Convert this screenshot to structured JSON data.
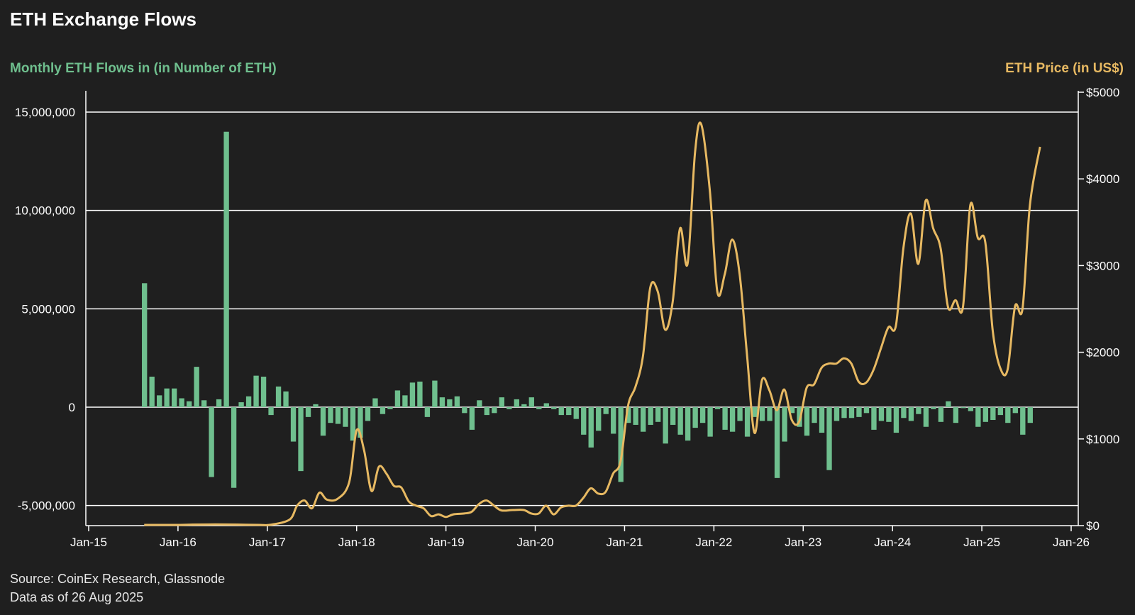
{
  "title": "ETH Exchange Flows",
  "left_axis_label": "Monthly ETH Flows in (in Number of ETH)",
  "right_axis_label": "ETH Price (in US$)",
  "source": "Source: CoinEx Research, Glassnode",
  "data_as_of": "Data as of 26 Aug 2025",
  "colors": {
    "background": "#1f1f1f",
    "bars": "#6fbf8e",
    "price_line": "#e7b962",
    "gridline": "#ffffff",
    "text": "#ffffff"
  },
  "chart_data": {
    "type": "bar+line",
    "title": "ETH Exchange Flows",
    "x_tick_labels": [
      "Jan-15",
      "Jan-16",
      "Jan-17",
      "Jan-18",
      "Jan-19",
      "Jan-20",
      "Jan-21",
      "Jan-22",
      "Jan-23",
      "Jan-24",
      "Jan-25",
      "Jan-26"
    ],
    "y_left": {
      "label": "Monthly ETH Flows in (in Number of ETH)",
      "ticks": [
        15000000,
        10000000,
        5000000,
        0,
        -5000000
      ],
      "tick_labels": [
        "15,000,000",
        "10,000,000",
        "5,000,000",
        "0",
        "-5,000,000"
      ],
      "range": [
        -6000000,
        16000000
      ]
    },
    "y_right": {
      "label": "ETH Price (in US$)",
      "ticks": [
        5000,
        4000,
        3000,
        2000,
        1000,
        0
      ],
      "tick_labels": [
        "$5000",
        "$4000",
        "$3000",
        "$2000",
        "$1000",
        "$0"
      ],
      "range": [
        0,
        5000
      ]
    },
    "gridlines": true,
    "series": [
      {
        "name": "Monthly ETH Flows in (in Number of ETH)",
        "kind": "bar",
        "axis": "left",
        "x_start": "2015-08",
        "frequency": "monthly",
        "values": [
          6300000,
          1550000,
          600000,
          950000,
          950000,
          450000,
          300000,
          2050000,
          350000,
          -3550000,
          400000,
          14000000,
          -4100000,
          250000,
          550000,
          1600000,
          1550000,
          -400000,
          1050000,
          800000,
          -1750000,
          -3250000,
          -500000,
          150000,
          -1450000,
          -800000,
          -850000,
          -1000000,
          -1700000,
          -1550000,
          -700000,
          450000,
          -350000,
          -100000,
          850000,
          600000,
          1250000,
          1300000,
          -500000,
          1350000,
          500000,
          400000,
          550000,
          -300000,
          -1150000,
          350000,
          -400000,
          -300000,
          500000,
          -100000,
          400000,
          150000,
          500000,
          -100000,
          200000,
          -100000,
          -400000,
          -400000,
          -600000,
          -1400000,
          -2050000,
          -1200000,
          -350000,
          -1350000,
          -3800000,
          -800000,
          -900000,
          -1250000,
          -900000,
          -750000,
          -1850000,
          -900000,
          -1400000,
          -1700000,
          -1050000,
          -800000,
          -1500000,
          -100000,
          -1150000,
          -1250000,
          -700000,
          -1500000,
          -500000,
          -700000,
          -700000,
          -3600000,
          -1750000,
          -300000,
          -1000000,
          -1450000,
          -800000,
          -1300000,
          -3200000,
          -700000,
          -550000,
          -550000,
          -500000,
          -300000,
          -1150000,
          -700000,
          -750000,
          -1300000,
          -550000,
          -700000,
          -350000,
          -1000000,
          -100000,
          -750000,
          300000,
          -800000,
          -50000,
          -200000,
          -1000000,
          -750000,
          -650000,
          -400000,
          -800000,
          -300000,
          -1400000,
          -800000
        ]
      },
      {
        "name": "ETH Price (in US$)",
        "kind": "line",
        "axis": "right",
        "points": [
          [
            "2015-08-15",
            8
          ],
          [
            "2016-01-01",
            8
          ],
          [
            "2016-03-01",
            12
          ],
          [
            "2016-06-01",
            14
          ],
          [
            "2016-09-01",
            12
          ],
          [
            "2016-12-01",
            8
          ],
          [
            "2017-01-15",
            10
          ],
          [
            "2017-04-01",
            70
          ],
          [
            "2017-05-01",
            230
          ],
          [
            "2017-06-01",
            290
          ],
          [
            "2017-07-01",
            200
          ],
          [
            "2017-08-01",
            380
          ],
          [
            "2017-09-01",
            300
          ],
          [
            "2017-10-15",
            310
          ],
          [
            "2017-12-01",
            500
          ],
          [
            "2018-01-01",
            1100
          ],
          [
            "2018-02-01",
            870
          ],
          [
            "2018-03-01",
            400
          ],
          [
            "2018-04-01",
            680
          ],
          [
            "2018-05-01",
            600
          ],
          [
            "2018-06-01",
            460
          ],
          [
            "2018-07-01",
            440
          ],
          [
            "2018-08-01",
            280
          ],
          [
            "2018-09-01",
            230
          ],
          [
            "2018-10-01",
            200
          ],
          [
            "2018-11-01",
            110
          ],
          [
            "2018-12-01",
            130
          ],
          [
            "2019-01-01",
            100
          ],
          [
            "2019-02-01",
            130
          ],
          [
            "2019-03-15",
            140
          ],
          [
            "2019-04-15",
            160
          ],
          [
            "2019-05-15",
            250
          ],
          [
            "2019-06-15",
            290
          ],
          [
            "2019-07-15",
            230
          ],
          [
            "2019-08-15",
            175
          ],
          [
            "2019-10-01",
            180
          ],
          [
            "2019-11-15",
            180
          ],
          [
            "2019-12-15",
            140
          ],
          [
            "2020-01-15",
            140
          ],
          [
            "2020-02-15",
            230
          ],
          [
            "2020-03-15",
            130
          ],
          [
            "2020-04-15",
            210
          ],
          [
            "2020-05-15",
            230
          ],
          [
            "2020-06-15",
            230
          ],
          [
            "2020-07-15",
            320
          ],
          [
            "2020-08-15",
            430
          ],
          [
            "2020-09-15",
            370
          ],
          [
            "2020-10-15",
            390
          ],
          [
            "2020-11-15",
            600
          ],
          [
            "2020-12-15",
            740
          ],
          [
            "2021-01-15",
            1380
          ],
          [
            "2021-02-15",
            1600
          ],
          [
            "2021-03-15",
            1950
          ],
          [
            "2021-04-15",
            2750
          ],
          [
            "2021-05-15",
            2700
          ],
          [
            "2021-06-15",
            2260
          ],
          [
            "2021-07-15",
            2580
          ],
          [
            "2021-08-15",
            3430
          ],
          [
            "2021-09-15",
            3020
          ],
          [
            "2021-10-15",
            4300
          ],
          [
            "2021-11-10",
            4630
          ],
          [
            "2021-12-15",
            3860
          ],
          [
            "2022-01-15",
            2700
          ],
          [
            "2022-02-15",
            2900
          ],
          [
            "2022-03-15",
            3300
          ],
          [
            "2022-04-15",
            2900
          ],
          [
            "2022-05-15",
            1960
          ],
          [
            "2022-06-15",
            1070
          ],
          [
            "2022-07-15",
            1680
          ],
          [
            "2022-08-15",
            1560
          ],
          [
            "2022-09-15",
            1330
          ],
          [
            "2022-10-15",
            1570
          ],
          [
            "2022-11-15",
            1220
          ],
          [
            "2022-12-15",
            1200
          ],
          [
            "2023-01-15",
            1590
          ],
          [
            "2023-02-15",
            1630
          ],
          [
            "2023-03-15",
            1820
          ],
          [
            "2023-04-15",
            1870
          ],
          [
            "2023-05-15",
            1870
          ],
          [
            "2023-06-15",
            1930
          ],
          [
            "2023-07-15",
            1870
          ],
          [
            "2023-08-15",
            1660
          ],
          [
            "2023-09-15",
            1650
          ],
          [
            "2023-10-15",
            1800
          ],
          [
            "2023-11-15",
            2050
          ],
          [
            "2023-12-15",
            2290
          ],
          [
            "2024-01-15",
            2310
          ],
          [
            "2024-02-15",
            3200
          ],
          [
            "2024-03-15",
            3600
          ],
          [
            "2024-04-15",
            3020
          ],
          [
            "2024-05-15",
            3750
          ],
          [
            "2024-06-15",
            3430
          ],
          [
            "2024-07-15",
            3200
          ],
          [
            "2024-08-15",
            2520
          ],
          [
            "2024-09-15",
            2600
          ],
          [
            "2024-10-15",
            2520
          ],
          [
            "2024-11-15",
            3700
          ],
          [
            "2024-12-15",
            3320
          ],
          [
            "2025-01-15",
            3270
          ],
          [
            "2025-02-15",
            2250
          ],
          [
            "2025-03-15",
            1820
          ],
          [
            "2025-04-15",
            1800
          ],
          [
            "2025-05-15",
            2530
          ],
          [
            "2025-06-15",
            2500
          ],
          [
            "2025-07-15",
            3700
          ],
          [
            "2025-08-26",
            4370
          ]
        ]
      }
    ]
  }
}
